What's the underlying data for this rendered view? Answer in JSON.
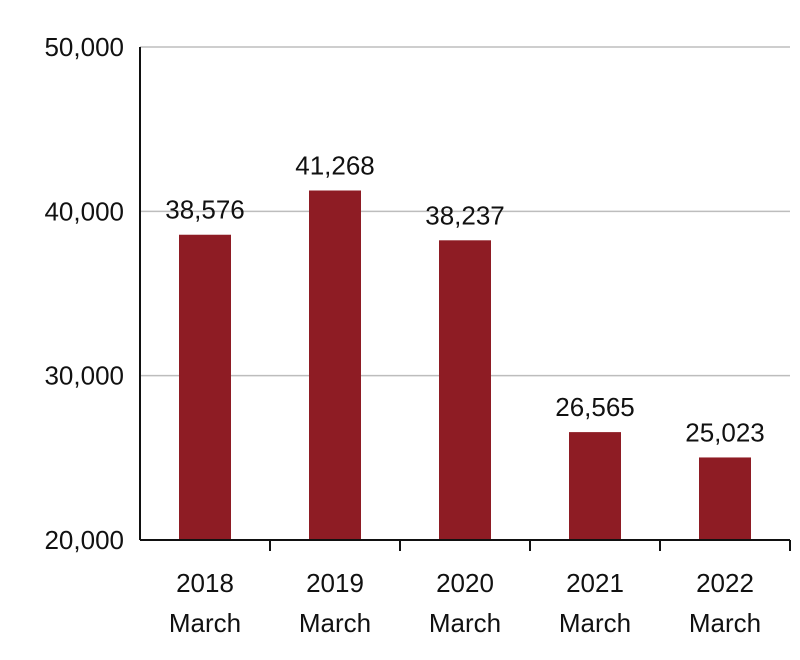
{
  "chart_data": {
    "type": "bar",
    "title": "",
    "xlabel": "",
    "ylabel": "",
    "categories": [
      [
        "2018",
        "March"
      ],
      [
        "2019",
        "March"
      ],
      [
        "2020",
        "March"
      ],
      [
        "2021",
        "March"
      ],
      [
        "2022",
        "March"
      ]
    ],
    "values": [
      38576,
      41268,
      38237,
      26565,
      25023
    ],
    "value_labels": [
      "38,576",
      "41,268",
      "38,237",
      "26,565",
      "25,023"
    ],
    "ylim": [
      20000,
      50000
    ],
    "yticks": [
      20000,
      30000,
      40000,
      50000
    ],
    "ytick_labels": [
      "20,000",
      "30,000",
      "40,000",
      "50,000"
    ],
    "grid": true,
    "legend": "none",
    "colors": {
      "bar": "#8e1c24",
      "axis": "#111111",
      "grid": "#bdbdbd"
    }
  }
}
